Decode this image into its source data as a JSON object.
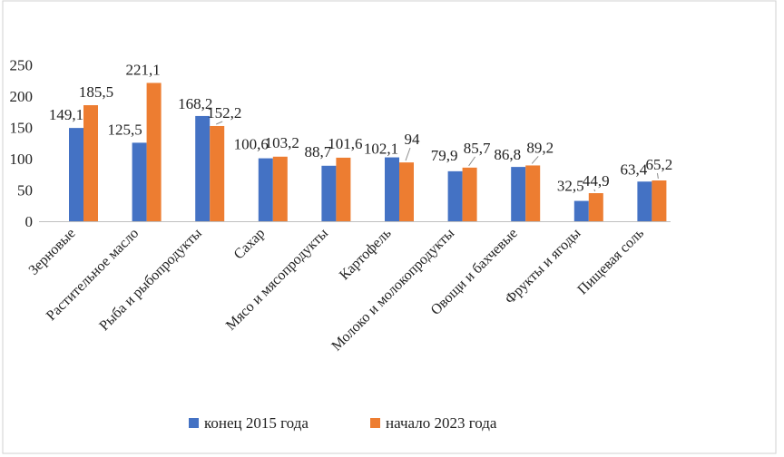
{
  "chart_data": {
    "type": "bar",
    "categories": [
      "Зерновые",
      "Растительное масло",
      "Рыба и рыбопродукты",
      "Сахар",
      "Мясо и мясопродукты",
      "Картофель",
      "Молоко и молокопродукты",
      "Овощи и бахчевые",
      "Фрукты и ягоды",
      "Пищевая соль"
    ],
    "series": [
      {
        "name": "конец 2015 года",
        "color": "#4472C4",
        "values": [
          149.1,
          125.5,
          168.2,
          100.6,
          88.7,
          102.1,
          79.9,
          86.8,
          32.5,
          63.4
        ],
        "labels": [
          "149,1",
          "125,5",
          "168,2",
          "100,6",
          "88,7",
          "102,1",
          "79,9",
          "86,8",
          "32,5",
          "63,4"
        ]
      },
      {
        "name": "начало 2023 года",
        "color": "#ED7D31",
        "values": [
          185.5,
          221.1,
          152.2,
          103.2,
          101.6,
          94,
          85.7,
          89.2,
          44.9,
          65.2
        ],
        "labels": [
          "185,5",
          "221,1",
          "152,2",
          "103,2",
          "101,6",
          "94",
          "85,7",
          "89,2",
          "44,9",
          "65,2"
        ]
      }
    ],
    "yticks": [
      "0",
      "50",
      "100",
      "150",
      "200",
      "250"
    ],
    "ylim": [
      0,
      250
    ],
    "legend_position": "bottom",
    "grid": false
  }
}
